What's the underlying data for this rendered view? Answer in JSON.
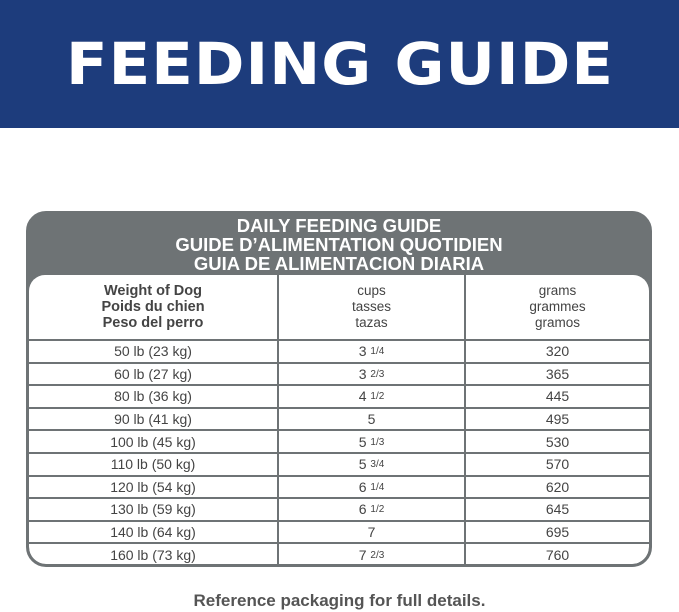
{
  "banner": {
    "title": "FEEDING GUIDE",
    "color": "#1d3c7c"
  },
  "table": {
    "titles": [
      "DAILY FEEDING GUIDE",
      "GUIDE D’ALIMENTATION QUOTIDIEN",
      "GUIA DE ALIMENTACION DIARIA"
    ],
    "headers": [
      [
        "Weight of Dog",
        "Poids du chien",
        "Peso del perro"
      ],
      [
        "cups",
        "tasses",
        "tazas"
      ],
      [
        "grams",
        "grammes",
        "gramos"
      ]
    ],
    "rows": [
      {
        "weight": "50 lb (23 kg)",
        "cups_whole": "3",
        "cups_frac": "1/4",
        "grams": "320"
      },
      {
        "weight": "60 lb (27 kg)",
        "cups_whole": "3",
        "cups_frac": "2/3",
        "grams": "365"
      },
      {
        "weight": "80 lb (36 kg)",
        "cups_whole": "4",
        "cups_frac": "1/2",
        "grams": "445"
      },
      {
        "weight": "90 lb (41 kg)",
        "cups_whole": "5",
        "cups_frac": "",
        "grams": "495"
      },
      {
        "weight": "100 lb (45 kg)",
        "cups_whole": "5",
        "cups_frac": "1/3",
        "grams": "530"
      },
      {
        "weight": "110 lb (50 kg)",
        "cups_whole": "5",
        "cups_frac": "3/4",
        "grams": "570"
      },
      {
        "weight": "120 lb (54 kg)",
        "cups_whole": "6",
        "cups_frac": "1/4",
        "grams": "620"
      },
      {
        "weight": "130 lb (59 kg)",
        "cups_whole": "6",
        "cups_frac": "1/2",
        "grams": "645"
      },
      {
        "weight": "140 lb (64 kg)",
        "cups_whole": "7",
        "cups_frac": "",
        "grams": "695"
      },
      {
        "weight": "160 lb (73 kg)",
        "cups_whole": "7",
        "cups_frac": "2/3",
        "grams": "760"
      }
    ]
  },
  "footer": {
    "note": "Reference packaging for full details."
  }
}
